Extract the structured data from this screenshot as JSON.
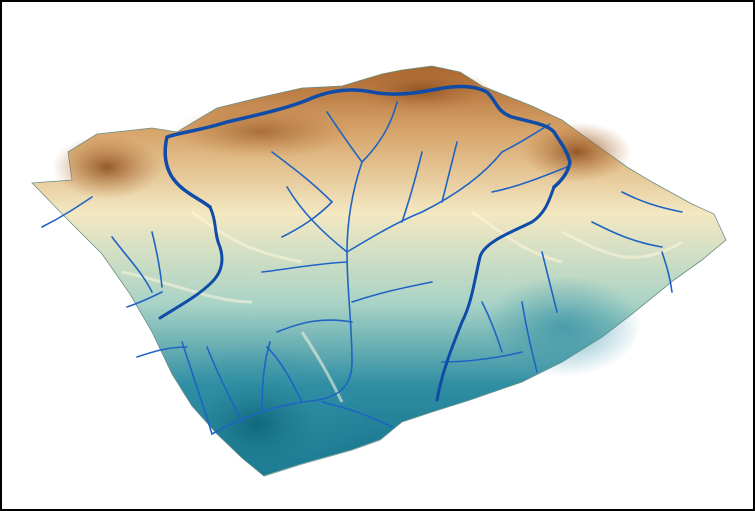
{
  "map": {
    "type": "3d-terrain-watershed",
    "colors": {
      "peak": "#a9652d",
      "high": "#d7a46a",
      "mid": "#f3e8c2",
      "low_mid": "#a9d3c6",
      "valley": "#2f8ea3",
      "deep_valley": "#13728a",
      "stream": "#1f64c4",
      "watershed_boundary": "#0f4ca8",
      "background": "#ffffff",
      "frame": "#000000"
    },
    "layers": [
      "terrain-surface",
      "stream-network",
      "watershed-boundary"
    ]
  }
}
